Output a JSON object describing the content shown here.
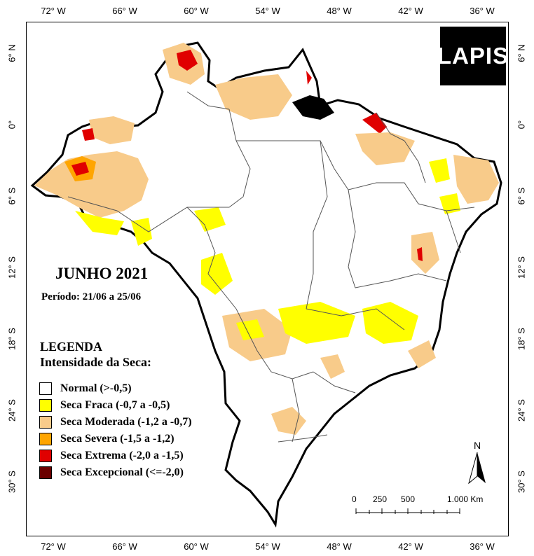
{
  "map": {
    "title": "JUNHO 2021",
    "period": "Período: 21/06 a 25/06",
    "legend_heading": "LEGENDA",
    "legend_subheading": "Intensidade da Seca:",
    "legend_items": [
      {
        "label": "Normal (>-0,5)",
        "color": "#ffffff"
      },
      {
        "label": "Seca Fraca (-0,7 a -0,5)",
        "color": "#ffff00"
      },
      {
        "label": "Seca Moderada (-1,2 a -0,7)",
        "color": "#f8cb8a"
      },
      {
        "label": "Seca Severa (-1,5 a -1,2)",
        "color": "#ffa500"
      },
      {
        "label": "Seca Extrema (-2,0 a -1,5)",
        "color": "#e00000"
      },
      {
        "label": "Seca Excepcional (<=-2,0)",
        "color": "#6b0000"
      }
    ],
    "logo_text": "LAPIS",
    "north_label": "N",
    "scale_labels": [
      "0",
      "250",
      "500",
      "1.000 Km"
    ],
    "lon_ticks": [
      "72° W",
      "66° W",
      "60° W",
      "54° W",
      "48° W",
      "42° W",
      "36° W"
    ],
    "lat_ticks": [
      "6° N",
      "0°",
      "6° S",
      "12° S",
      "18° S",
      "24° S",
      "30° S"
    ]
  }
}
